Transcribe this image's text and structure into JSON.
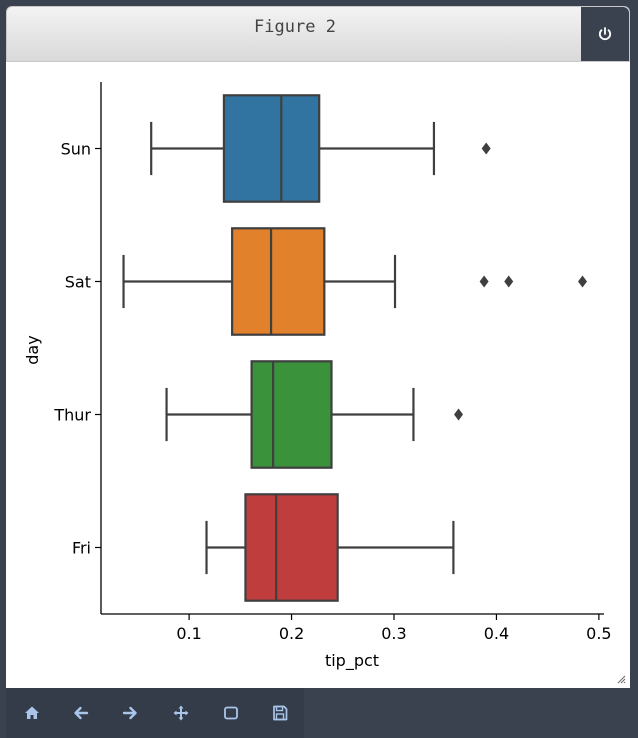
{
  "window": {
    "title": "Figure 2"
  },
  "toolbar": {
    "buttons": [
      {
        "name": "home-icon"
      },
      {
        "name": "back-arrow-icon"
      },
      {
        "name": "forward-arrow-icon"
      },
      {
        "name": "pan-icon"
      },
      {
        "name": "zoom-rect-icon"
      },
      {
        "name": "save-icon"
      }
    ]
  },
  "chart_data": {
    "type": "box",
    "orientation": "horizontal",
    "xlabel": "tip_pct",
    "ylabel": "day",
    "xlim": [
      0.014,
      0.505
    ],
    "xticks": [
      0.1,
      0.2,
      0.3,
      0.4,
      0.5
    ],
    "xtick_labels": [
      "0.1",
      "0.2",
      "0.3",
      "0.4",
      "0.5"
    ],
    "categories": [
      "Sun",
      "Sat",
      "Thur",
      "Fri"
    ],
    "colors": [
      "#3274a1",
      "#e1812c",
      "#3a923a",
      "#c03d3e"
    ],
    "boxes": [
      {
        "category": "Sun",
        "whislo": 0.063,
        "q1": 0.134,
        "median": 0.19,
        "q3": 0.227,
        "whishi": 0.339,
        "fliers": [
          0.39
        ]
      },
      {
        "category": "Sat",
        "whislo": 0.036,
        "q1": 0.142,
        "median": 0.18,
        "q3": 0.232,
        "whishi": 0.301,
        "fliers": [
          0.388,
          0.412,
          0.484
        ]
      },
      {
        "category": "Thur",
        "whislo": 0.078,
        "q1": 0.161,
        "median": 0.182,
        "q3": 0.239,
        "whishi": 0.319,
        "fliers": [
          0.363
        ]
      },
      {
        "category": "Fri",
        "whislo": 0.117,
        "q1": 0.155,
        "median": 0.185,
        "q3": 0.245,
        "whishi": 0.358,
        "fliers": []
      }
    ],
    "grid": false,
    "legend": "none"
  }
}
